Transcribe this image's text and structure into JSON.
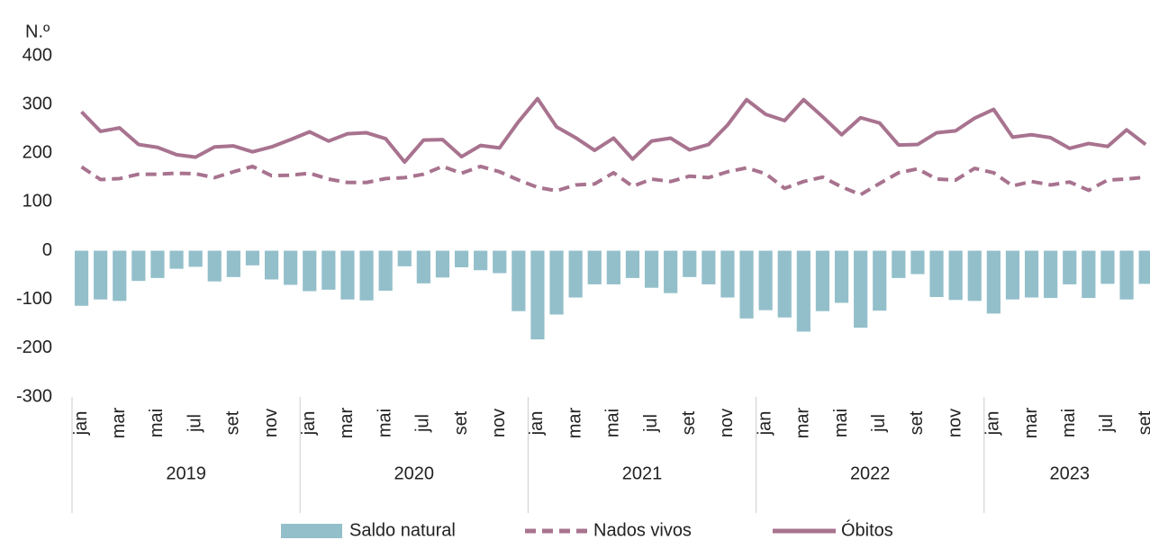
{
  "chart_data": {
    "type": "bar_line",
    "ylabel": "N.º",
    "categories": [
      "jan",
      null,
      "mar",
      null,
      "mai",
      null,
      "jul",
      null,
      "set",
      null,
      "nov",
      null,
      "jan",
      null,
      "mar",
      null,
      "mai",
      null,
      "jul",
      null,
      "set",
      null,
      "nov",
      null,
      "jan",
      null,
      "mar",
      null,
      "mai",
      null,
      "jul",
      null,
      "set",
      null,
      "nov",
      null,
      "jan",
      null,
      "mar",
      null,
      "mai",
      null,
      "jul",
      null,
      "set",
      null,
      "nov",
      null,
      "jan",
      null,
      "mar",
      null,
      "mai",
      null,
      "jul",
      null,
      "set"
    ],
    "years": [
      "2019",
      "2020",
      "2021",
      "2022",
      "2023"
    ],
    "ylim": [
      -300,
      400
    ],
    "yticks": [
      -300,
      -200,
      -100,
      0,
      100,
      200,
      300,
      400
    ],
    "series": [
      {
        "name": "Saldo natural",
        "kind": "bar",
        "color": "#93bfca",
        "values": [
          -113,
          -100,
          -103,
          -62,
          -56,
          -37,
          -33,
          -63,
          -54,
          -30,
          -59,
          -70,
          -83,
          -80,
          -100,
          -102,
          -82,
          -32,
          -67,
          -55,
          -34,
          -40,
          -46,
          -124,
          -182,
          -131,
          -96,
          -69,
          -69,
          -56,
          -76,
          -87,
          -54,
          -69,
          -96,
          -139,
          -122,
          -137,
          -166,
          -124,
          -107,
          -158,
          -123,
          -56,
          -48,
          -95,
          -101,
          -103,
          -129,
          -100,
          -96,
          -97,
          -69,
          -97,
          -68,
          -100,
          -68
        ]
      },
      {
        "name": "Nados vivos",
        "kind": "dashed",
        "color": "#a8738f",
        "values": [
          172,
          146,
          148,
          157,
          157,
          159,
          158,
          150,
          162,
          173,
          154,
          155,
          159,
          147,
          140,
          140,
          148,
          150,
          157,
          173,
          159,
          173,
          162,
          145,
          130,
          123,
          135,
          137,
          160,
          132,
          147,
          142,
          153,
          150,
          162,
          170,
          158,
          128,
          142,
          151,
          131,
          115,
          138,
          160,
          168,
          147,
          145,
          169,
          160,
          133,
          142,
          135,
          141,
          124,
          145,
          147,
          151
        ]
      },
      {
        "name": "Óbitos",
        "kind": "solid",
        "color": "#a8738f",
        "values": [
          285,
          245,
          252,
          218,
          212,
          197,
          192,
          213,
          215,
          203,
          213,
          228,
          244,
          225,
          240,
          242,
          230,
          182,
          227,
          228,
          193,
          216,
          211,
          265,
          312,
          254,
          232,
          206,
          231,
          188,
          225,
          231,
          207,
          218,
          258,
          310,
          280,
          267,
          310,
          275,
          238,
          273,
          262,
          217,
          218,
          242,
          246,
          272,
          290,
          233,
          238,
          232,
          210,
          220,
          214,
          248,
          218
        ]
      }
    ]
  }
}
